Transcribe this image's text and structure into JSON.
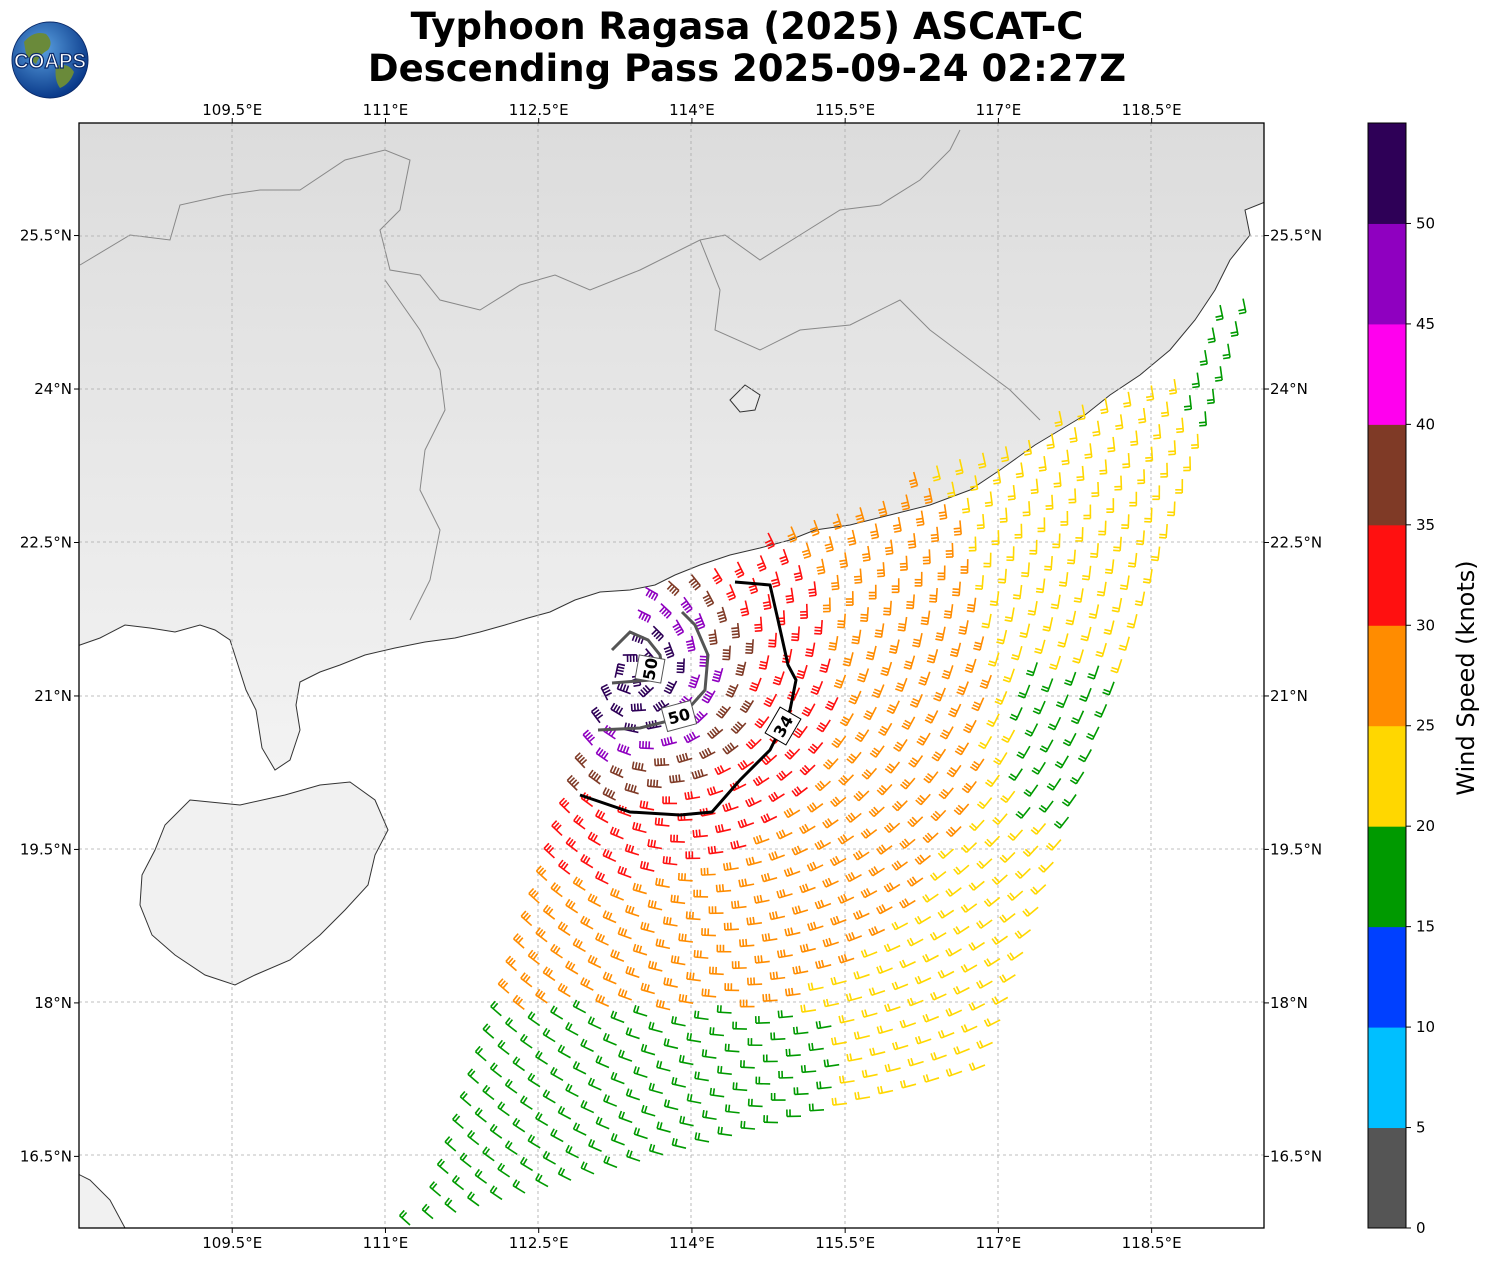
{
  "title_line1": "Typhoon Ragasa (2025) ASCAT-C",
  "title_line2": "Descending Pass 2025-09-24 02:27Z",
  "logo_text": "COAPS",
  "map": {
    "lon_range": [
      108.0,
      119.6
    ],
    "lat_range": [
      15.8,
      26.6
    ],
    "lon_ticks": [
      109.5,
      111,
      112.5,
      114,
      115.5,
      117,
      118.5
    ],
    "lon_tick_labels": [
      "109.5°E",
      "111°E",
      "112.5°E",
      "114°E",
      "115.5°E",
      "117°E",
      "118.5°E"
    ],
    "lat_ticks": [
      25.5,
      24,
      22.5,
      21,
      19.5,
      18,
      16.5
    ],
    "lat_tick_labels": [
      "25.5°N",
      "24°N",
      "22.5°N",
      "21°N",
      "19.5°N",
      "18°N",
      "16.5°N"
    ],
    "contour_labels": [
      "50",
      "50",
      "34"
    ],
    "storm_center": [
      113.4,
      21.2
    ]
  },
  "colorbar": {
    "label": "Wind Speed (knots)",
    "bounds": [
      0,
      5,
      10,
      15,
      20,
      25,
      30,
      35,
      40,
      45,
      50,
      55
    ],
    "tick_labels": [
      "0",
      "5",
      "10",
      "15",
      "20",
      "25",
      "30",
      "35",
      "40",
      "45",
      "50"
    ],
    "colors": [
      "#555555",
      "#00bfff",
      "#0040ff",
      "#009a00",
      "#ffd700",
      "#ff8c00",
      "#ff1010",
      "#7f3a26",
      "#ff00ee",
      "#8f00c0",
      "#2e0057"
    ]
  }
}
